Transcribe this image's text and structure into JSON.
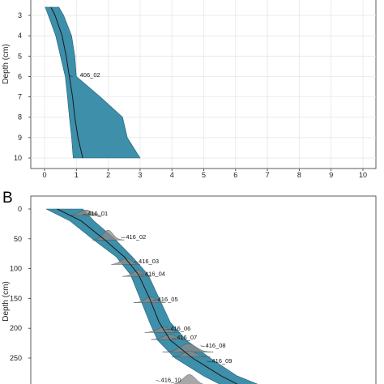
{
  "panels": {
    "a": {
      "label": ""
    },
    "b": {
      "label": "B"
    }
  },
  "chart_data": [
    {
      "type": "area",
      "ylabel": "Depth (cm)",
      "xlabel": "",
      "ylim": [
        2.6,
        10
      ],
      "xlim": [
        -0.6,
        10.3
      ],
      "y_ticks": [
        3,
        4,
        5,
        6,
        7,
        8,
        9,
        10
      ],
      "x_ticks": [
        0,
        1,
        2,
        3,
        4,
        5,
        6,
        7,
        8,
        9,
        10
      ],
      "grid": true,
      "series": [
        {
          "depth": [
            2.6,
            3.0,
            4.0,
            5.0,
            6.0,
            7.0,
            8.0,
            9.0,
            10.0
          ],
          "median": [
            0.2,
            0.33,
            0.55,
            0.68,
            0.78,
            0.88,
            0.95,
            1.05,
            1.2
          ],
          "lower": [
            0.02,
            0.12,
            0.35,
            0.5,
            0.65,
            0.72,
            0.78,
            0.85,
            0.9
          ],
          "upper": [
            0.45,
            0.6,
            0.85,
            0.95,
            1.0,
            1.75,
            2.45,
            2.6,
            3.0
          ]
        }
      ],
      "annotations": [
        {
          "text": "406_02",
          "depth": 5.9,
          "x": 0.78
        }
      ]
    },
    {
      "type": "area",
      "ylabel": "Depth (cm)",
      "xlabel": "",
      "ylim": [
        0,
        295
      ],
      "y_ticks": [
        0,
        50,
        100,
        150,
        200,
        250
      ],
      "grid": false,
      "series": [
        {
          "depth": [
            0,
            20,
            50,
            80,
            110,
            150,
            190,
            220,
            250,
            280,
            295
          ],
          "median": [
            0.4,
            1.15,
            1.85,
            2.5,
            2.95,
            3.3,
            3.6,
            3.95,
            4.65,
            5.55,
            6.1
          ],
          "lower": [
            0.05,
            0.8,
            1.5,
            2.25,
            2.7,
            3.0,
            3.3,
            3.55,
            4.1,
            5.0,
            5.55
          ],
          "upper": [
            1.2,
            1.55,
            2.2,
            2.75,
            3.25,
            3.6,
            3.95,
            4.45,
            5.2,
            6.05,
            6.75
          ]
        }
      ],
      "annotations": [
        {
          "text": "416_01",
          "depth": 7,
          "x": 1.2
        },
        {
          "text": "416_02",
          "depth": 46,
          "x": 2.4
        },
        {
          "text": "416_03",
          "depth": 87,
          "x": 2.8
        },
        {
          "text": "416_04",
          "depth": 108,
          "x": 3.0
        },
        {
          "text": "416_05",
          "depth": 151,
          "x": 3.4
        },
        {
          "text": "416_06",
          "depth": 200,
          "x": 3.8
        },
        {
          "text": "416_07",
          "depth": 215,
          "x": 4.0
        },
        {
          "text": "416_08",
          "depth": 228,
          "x": 4.9
        },
        {
          "text": "416_09",
          "depth": 254,
          "x": 5.1
        },
        {
          "text": "416_10",
          "depth": 286,
          "x": 3.5
        }
      ],
      "densities": [
        {
          "label": "416_01",
          "depth": 11,
          "center": 1.3,
          "width": 0.5,
          "height": 1.3
        },
        {
          "label": "416_02",
          "depth": 52,
          "center": 2.0,
          "width": 0.5,
          "height": 1.4
        },
        {
          "label": "416_03",
          "depth": 93,
          "center": 2.55,
          "width": 0.45,
          "height": 1.4
        },
        {
          "label": "416_04",
          "depth": 113,
          "center": 2.9,
          "width": 0.45,
          "height": 1.1
        },
        {
          "label": "416_05",
          "depth": 157,
          "center": 3.3,
          "width": 0.5,
          "height": 1.0
        },
        {
          "label": "416_06",
          "depth": 207,
          "center": 3.7,
          "width": 0.55,
          "height": 1.0
        },
        {
          "label": "416_07",
          "depth": 219,
          "center": 3.9,
          "width": 0.55,
          "height": 1.1
        },
        {
          "label": "416_08",
          "depth": 240,
          "center": 4.5,
          "width": 0.8,
          "height": 1.2
        },
        {
          "label": "416_09",
          "depth": 248,
          "center": 4.6,
          "width": 0.6,
          "height": 1.0
        },
        {
          "label": "416_10",
          "depth": 295,
          "center": 4.5,
          "width": 0.6,
          "height": 1.9
        }
      ]
    }
  ],
  "colors": {
    "band": "#2c86a3",
    "density": "#8a8a8a",
    "median": "#1a1a1a"
  }
}
